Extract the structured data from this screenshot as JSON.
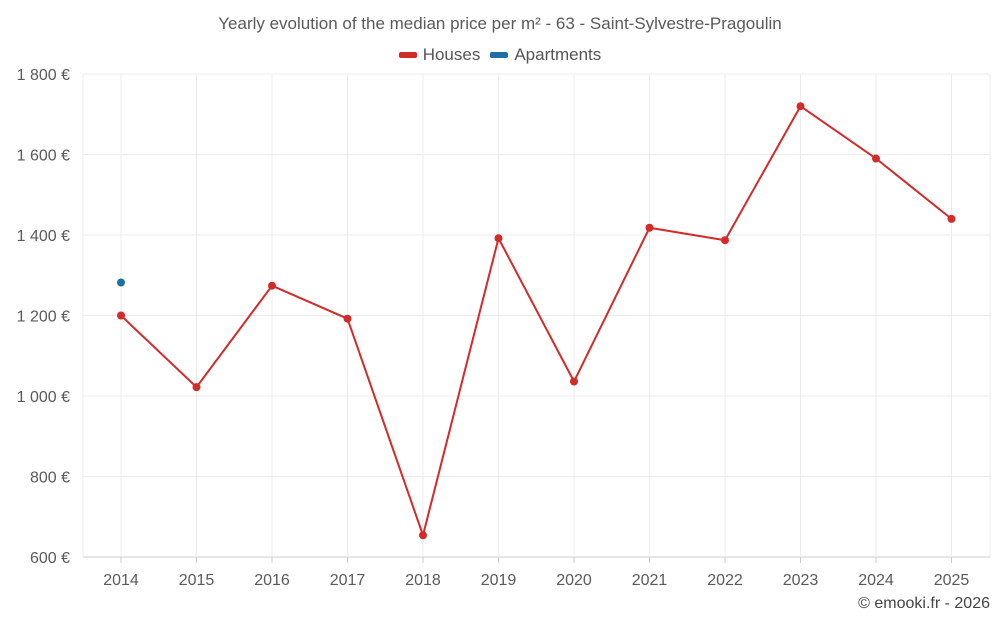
{
  "chart_data": {
    "type": "line",
    "title": "Yearly evolution of the median price per m² - 63 - Saint-Sylvestre-Pragoulin",
    "xlabel": "",
    "ylabel": "",
    "categories": [
      "2014",
      "2015",
      "2016",
      "2017",
      "2018",
      "2019",
      "2020",
      "2021",
      "2022",
      "2023",
      "2024",
      "2025"
    ],
    "y_ticks": [
      600,
      800,
      1000,
      1200,
      1400,
      1600,
      1800
    ],
    "y_tick_labels": [
      "600 €",
      "800 €",
      "1 000 €",
      "1 200 €",
      "1 400 €",
      "1 600 €",
      "1 800 €"
    ],
    "ylim": [
      600,
      1800
    ],
    "grid": true,
    "legend_position": "top-center",
    "series": [
      {
        "name": "Houses",
        "color": "#d32a2a",
        "values": [
          1200,
          1022,
          1274,
          1192,
          654,
          1392,
          1036,
          1418,
          1387,
          1720,
          1590,
          1440
        ]
      },
      {
        "name": "Apartments",
        "color": "#1f6fa5",
        "values": [
          1282,
          null,
          null,
          null,
          null,
          null,
          null,
          null,
          null,
          null,
          null,
          null
        ]
      }
    ]
  },
  "footer": {
    "credit": "© emooki.fr - 2026"
  }
}
